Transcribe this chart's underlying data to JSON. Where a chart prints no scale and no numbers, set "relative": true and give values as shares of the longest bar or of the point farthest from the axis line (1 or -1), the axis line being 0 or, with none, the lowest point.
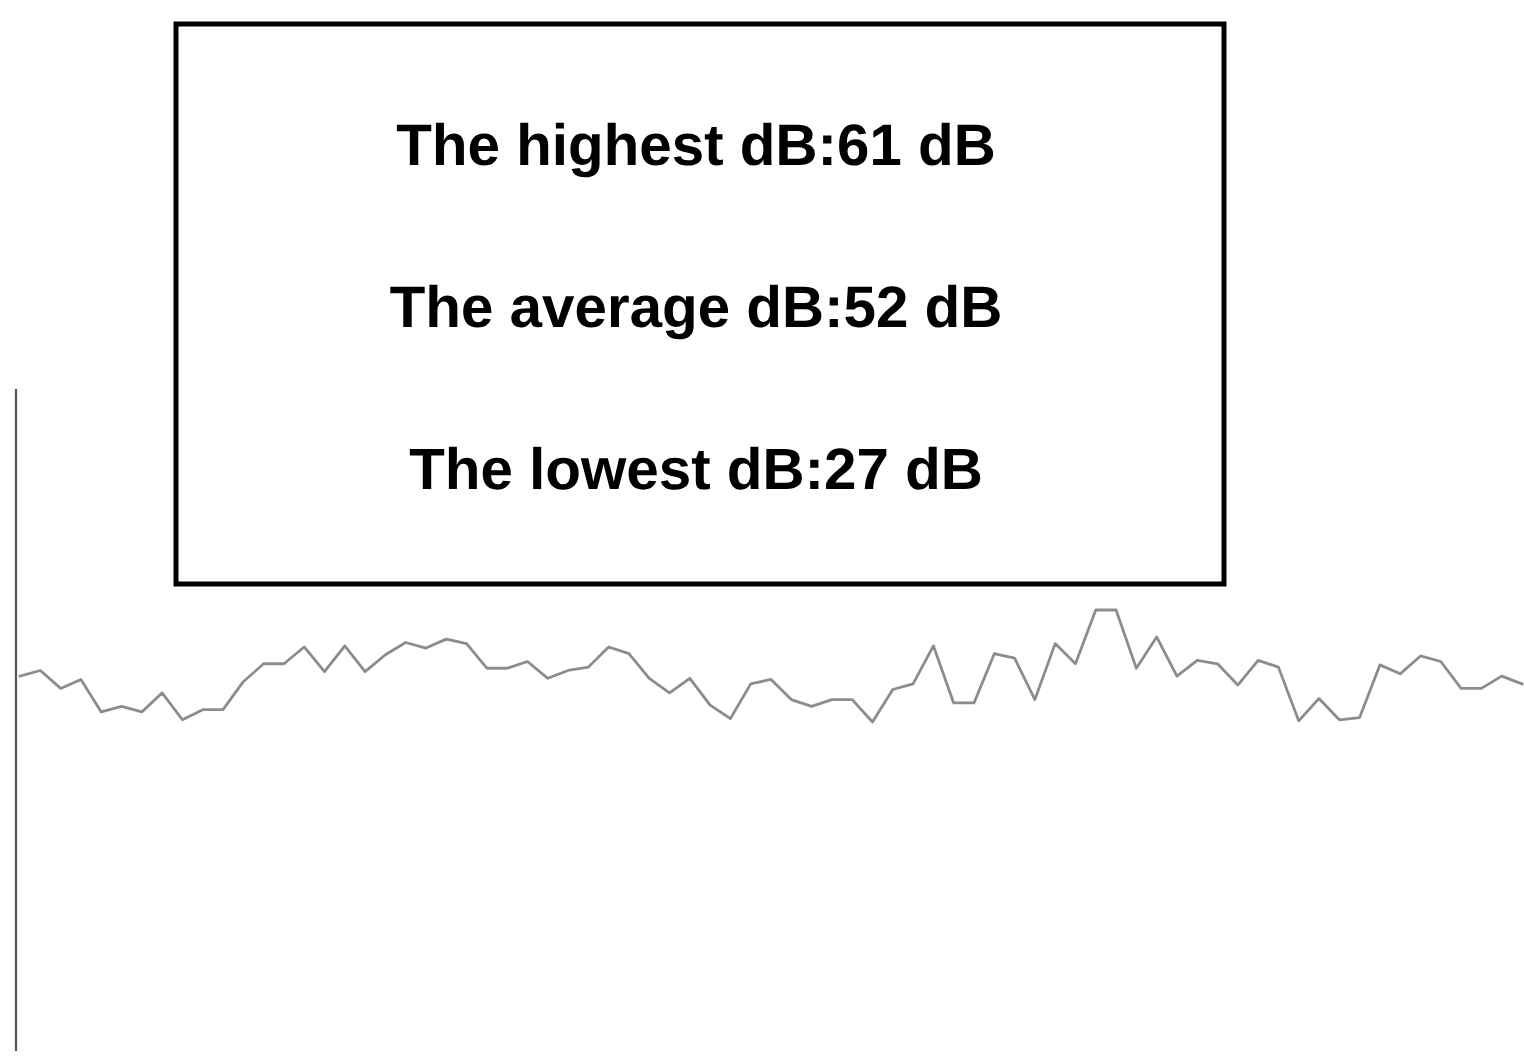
{
  "chart_data": {
    "type": "line",
    "relative": true,
    "annotations": [
      "The highest dB:61 dB",
      "The average dB:52 dB",
      "The lowest dB:27 dB"
    ],
    "categories": [
      null,
      null,
      null,
      null,
      null,
      null,
      null,
      null,
      null,
      null,
      null,
      null,
      null,
      null,
      null,
      null,
      null,
      null,
      null,
      null,
      null,
      null,
      null,
      null,
      null,
      null,
      null,
      null,
      null,
      null,
      null,
      null,
      null,
      null,
      null,
      null,
      null,
      null,
      null,
      null,
      null,
      null,
      null,
      null,
      null,
      null,
      null,
      null,
      null,
      null,
      null,
      null,
      null,
      null,
      null,
      null,
      null,
      null,
      null,
      null,
      null,
      null,
      null,
      null,
      null,
      null,
      null,
      null,
      null,
      null,
      null,
      null,
      null,
      null,
      null
    ],
    "series": [
      {
        "color": "#8c8c8c",
        "values": [
          0.41,
          0.46,
          0.3,
          0.38,
          0.09,
          0.14,
          0.09,
          0.26,
          0.02,
          0.11,
          0.11,
          0.36,
          0.52,
          0.52,
          0.67,
          0.45,
          0.68,
          0.45,
          0.6,
          0.71,
          0.66,
          0.74,
          0.7,
          0.48,
          0.48,
          0.54,
          0.39,
          0.46,
          0.49,
          0.67,
          0.61,
          0.39,
          0.26,
          0.39,
          0.15,
          0.03,
          0.34,
          0.38,
          0.2,
          0.14,
          0.2,
          0.2,
          0,
          0.29,
          0.34,
          0.68,
          0.17,
          0.17,
          0.61,
          0.57,
          0.2,
          0.7,
          0.52,
          1,
          1,
          0.48,
          0.76,
          0.41,
          0.55,
          0.52,
          0.33,
          0.55,
          0.49,
          0.01,
          0.21,
          0.02,
          0.04,
          0.51,
          0.43,
          0.59,
          0.54,
          0.3,
          0.3,
          0.41,
          0.34
        ]
      }
    ],
    "grid": false,
    "legend": false,
    "marker": "none",
    "line_style": "solid"
  }
}
